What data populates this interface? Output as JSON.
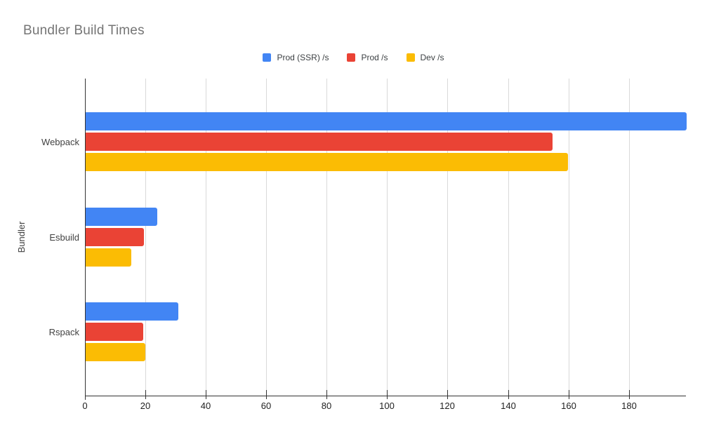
{
  "title": "Bundler Build Times",
  "chart_data": {
    "type": "bar",
    "orientation": "horizontal",
    "title": "Bundler Build Times",
    "categories": [
      "Webpack",
      "Esbuild",
      "Rspack"
    ],
    "series": [
      {
        "name": "Prod (SSR) /s",
        "color": "#4285F4",
        "values": [
          198.9,
          23.6,
          30.6
        ]
      },
      {
        "name": "Prod /s",
        "color": "#EA4335",
        "values": [
          154.5,
          19.3,
          19.0
        ]
      },
      {
        "name": "Dev /s",
        "color": "#FBBC04",
        "values": [
          159.6,
          15.1,
          19.7
        ]
      }
    ],
    "xlabel": "",
    "ylabel": "Bundler",
    "x_ticks": [
      0,
      20,
      40,
      60,
      80,
      100,
      120,
      140,
      160,
      180
    ],
    "xlim": [
      0,
      198.9
    ],
    "grid": true,
    "legend_position": "top",
    "colors": {
      "title": "#757575",
      "axis": "#333333",
      "gridline": "#d9d9d9",
      "labels": "#424242",
      "background": "#ffffff"
    }
  }
}
